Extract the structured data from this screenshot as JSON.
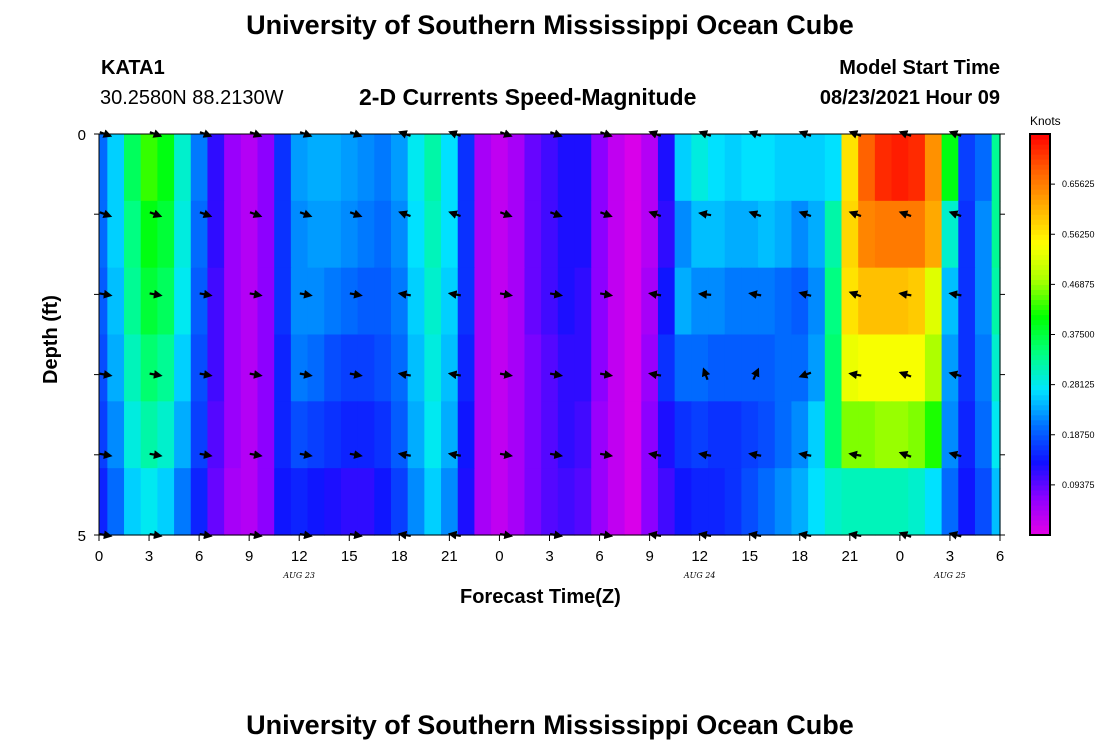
{
  "header": {
    "title": "University of Southern Mississippi Ocean Cube",
    "station_id": "KATA1",
    "coordinates": "30.2580N  88.2130W",
    "model_start_label": "Model Start Time",
    "model_start_time": "08/23/2021 Hour 09"
  },
  "footer": {
    "title": "University of Southern Mississippi Ocean Cube"
  },
  "colors": {
    "colormap": [
      "#e600e6",
      "#9000ff",
      "#1010ff",
      "#0070ff",
      "#00e6ff",
      "#00ff80",
      "#00ff00",
      "#aaff00",
      "#ffff00",
      "#ffb000",
      "#ff6000",
      "#ff0000"
    ]
  },
  "chart_data": {
    "type": "heatmap",
    "title": "2-D Currents Speed-Magnitude",
    "xlabel": "Forecast Time(Z)",
    "ylabel": "Depth (ft)",
    "units": "Knots",
    "x_hours": [
      0,
      1,
      2,
      3,
      4,
      5,
      6,
      7,
      8,
      9,
      10,
      11,
      12,
      13,
      14,
      15,
      16,
      17,
      18,
      19,
      20,
      21,
      22,
      23,
      24,
      25,
      26,
      27,
      28,
      29,
      30,
      31,
      32,
      33,
      34,
      35,
      36,
      37,
      38,
      39,
      40,
      41,
      42,
      43,
      44,
      45,
      46,
      47,
      48,
      49,
      50,
      51,
      52,
      53,
      54
    ],
    "x_tick_hours": [
      0,
      3,
      6,
      9,
      12,
      15,
      18,
      21,
      24,
      27,
      30,
      33,
      36,
      39,
      42,
      45,
      48,
      51,
      54
    ],
    "x_tick_labels": [
      "0",
      "3",
      "6",
      "9",
      "12",
      "15",
      "18",
      "21",
      "0",
      "3",
      "6",
      "9",
      "12",
      "15",
      "18",
      "21",
      "0",
      "3",
      "6"
    ],
    "date_labels": [
      {
        "text": "AUG  23",
        "hour": 12
      },
      {
        "text": "AUG  24",
        "hour": 36
      },
      {
        "text": "AUG  25",
        "hour": 51
      }
    ],
    "y_tick_labels": [
      "0",
      "5"
    ],
    "ylim": [
      0,
      5
    ],
    "depth_rows": [
      0,
      1,
      2,
      3,
      4,
      5
    ],
    "colorbar": {
      "min": 0.0,
      "max": 0.75,
      "tick_values": [
        0.09375,
        0.1875,
        0.28125,
        0.375,
        0.46875,
        0.5625,
        0.65625
      ],
      "tick_labels": [
        "0.09375",
        "0.18750",
        "0.28125",
        "0.37500",
        "0.46875",
        "0.56250",
        "0.65625"
      ]
    },
    "speed_by_depth": [
      [
        0.2,
        0.26,
        0.36,
        0.43,
        0.4,
        0.3,
        0.21,
        0.12,
        0.06,
        0.04,
        0.07,
        0.16,
        0.23,
        0.24,
        0.24,
        0.23,
        0.22,
        0.21,
        0.23,
        0.28,
        0.32,
        0.27,
        0.16,
        0.05,
        0.03,
        0.05,
        0.09,
        0.11,
        0.13,
        0.13,
        0.07,
        0.03,
        0.01,
        0.04,
        0.13,
        0.26,
        0.29,
        0.27,
        0.26,
        0.27,
        0.27,
        0.26,
        0.26,
        0.26,
        0.27,
        0.57,
        0.68,
        0.72,
        0.73,
        0.72,
        0.64,
        0.4,
        0.17,
        0.2,
        0.33
      ],
      [
        0.2,
        0.26,
        0.34,
        0.4,
        0.38,
        0.29,
        0.2,
        0.12,
        0.06,
        0.04,
        0.07,
        0.16,
        0.22,
        0.23,
        0.23,
        0.22,
        0.21,
        0.2,
        0.22,
        0.27,
        0.31,
        0.27,
        0.16,
        0.05,
        0.03,
        0.05,
        0.09,
        0.11,
        0.13,
        0.13,
        0.07,
        0.03,
        0.01,
        0.04,
        0.12,
        0.22,
        0.25,
        0.25,
        0.24,
        0.24,
        0.25,
        0.24,
        0.22,
        0.24,
        0.32,
        0.58,
        0.65,
        0.66,
        0.66,
        0.66,
        0.62,
        0.3,
        0.16,
        0.22,
        0.33
      ],
      [
        0.19,
        0.25,
        0.33,
        0.38,
        0.36,
        0.28,
        0.19,
        0.11,
        0.06,
        0.04,
        0.07,
        0.16,
        0.22,
        0.22,
        0.21,
        0.2,
        0.19,
        0.19,
        0.21,
        0.26,
        0.3,
        0.26,
        0.16,
        0.05,
        0.03,
        0.05,
        0.09,
        0.11,
        0.13,
        0.12,
        0.07,
        0.03,
        0.01,
        0.05,
        0.14,
        0.24,
        0.22,
        0.22,
        0.21,
        0.21,
        0.21,
        0.2,
        0.19,
        0.22,
        0.34,
        0.57,
        0.6,
        0.6,
        0.6,
        0.59,
        0.52,
        0.25,
        0.16,
        0.22,
        0.32
      ],
      [
        0.18,
        0.24,
        0.31,
        0.35,
        0.33,
        0.26,
        0.18,
        0.11,
        0.06,
        0.04,
        0.07,
        0.15,
        0.21,
        0.2,
        0.18,
        0.17,
        0.17,
        0.18,
        0.2,
        0.25,
        0.29,
        0.25,
        0.15,
        0.05,
        0.03,
        0.05,
        0.08,
        0.1,
        0.12,
        0.12,
        0.07,
        0.03,
        0.01,
        0.06,
        0.16,
        0.2,
        0.2,
        0.19,
        0.19,
        0.19,
        0.19,
        0.2,
        0.2,
        0.23,
        0.35,
        0.53,
        0.54,
        0.54,
        0.54,
        0.54,
        0.48,
        0.23,
        0.16,
        0.21,
        0.3
      ],
      [
        0.17,
        0.22,
        0.29,
        0.32,
        0.3,
        0.24,
        0.17,
        0.1,
        0.06,
        0.04,
        0.07,
        0.15,
        0.18,
        0.17,
        0.16,
        0.15,
        0.15,
        0.16,
        0.19,
        0.24,
        0.28,
        0.24,
        0.14,
        0.05,
        0.03,
        0.05,
        0.08,
        0.1,
        0.12,
        0.11,
        0.06,
        0.03,
        0.01,
        0.07,
        0.13,
        0.16,
        0.17,
        0.16,
        0.16,
        0.17,
        0.18,
        0.2,
        0.22,
        0.26,
        0.35,
        0.46,
        0.46,
        0.47,
        0.47,
        0.46,
        0.42,
        0.22,
        0.15,
        0.2,
        0.28
      ],
      [
        0.15,
        0.2,
        0.26,
        0.28,
        0.26,
        0.21,
        0.15,
        0.09,
        0.05,
        0.04,
        0.07,
        0.14,
        0.15,
        0.14,
        0.13,
        0.12,
        0.12,
        0.14,
        0.17,
        0.22,
        0.26,
        0.22,
        0.13,
        0.05,
        0.03,
        0.05,
        0.08,
        0.1,
        0.11,
        0.1,
        0.06,
        0.03,
        0.01,
        0.07,
        0.11,
        0.14,
        0.15,
        0.15,
        0.16,
        0.18,
        0.2,
        0.22,
        0.24,
        0.27,
        0.3,
        0.31,
        0.31,
        0.31,
        0.31,
        0.3,
        0.27,
        0.2,
        0.14,
        0.18,
        0.25
      ]
    ],
    "arrow_hours": [
      0,
      3,
      6,
      9,
      12,
      15,
      18,
      21,
      24,
      27,
      30,
      33,
      36,
      39,
      42,
      45,
      48,
      51
    ],
    "arrow_dir_deg": [
      [
        20,
        20,
        20,
        20,
        20,
        20,
        200,
        200,
        20,
        20,
        20,
        200,
        200,
        200,
        200,
        200,
        200,
        200
      ],
      [
        20,
        20,
        20,
        20,
        20,
        20,
        200,
        200,
        20,
        20,
        20,
        200,
        190,
        200,
        200,
        200,
        200,
        200
      ],
      [
        10,
        10,
        10,
        10,
        10,
        10,
        190,
        190,
        10,
        10,
        10,
        190,
        185,
        190,
        195,
        200,
        190,
        190
      ],
      [
        10,
        10,
        10,
        10,
        10,
        10,
        190,
        190,
        10,
        10,
        10,
        190,
        250,
        295,
        160,
        190,
        200,
        195
      ],
      [
        10,
        10,
        10,
        10,
        10,
        10,
        190,
        190,
        10,
        10,
        10,
        190,
        190,
        190,
        190,
        190,
        200,
        195
      ],
      [
        10,
        10,
        10,
        10,
        10,
        10,
        190,
        190,
        10,
        10,
        10,
        190,
        190,
        190,
        190,
        190,
        200,
        195
      ]
    ]
  }
}
